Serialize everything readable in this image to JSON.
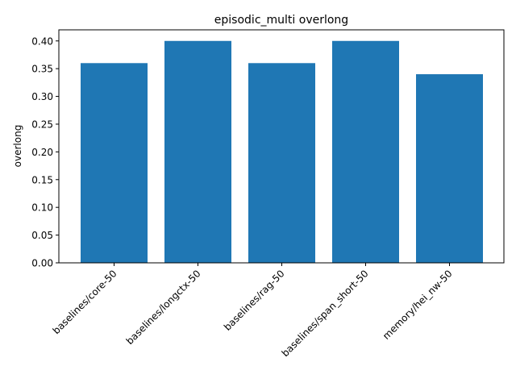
{
  "chart_data": {
    "type": "bar",
    "title": "episodic_multi overlong",
    "xlabel": "",
    "ylabel": "overlong",
    "categories": [
      "baselines/core-50",
      "baselines/longctx-50",
      "baselines/rag-50",
      "baselines/span_short-50",
      "memory/hei_nw-50"
    ],
    "values": [
      0.36,
      0.4,
      0.36,
      0.4,
      0.34
    ],
    "ylim": [
      0,
      0.42
    ],
    "yticks": [
      "0.00",
      "0.05",
      "0.10",
      "0.15",
      "0.20",
      "0.25",
      "0.30",
      "0.35",
      "0.40"
    ],
    "grid": false,
    "legend": "none",
    "bar_color": "#1f77b4"
  }
}
